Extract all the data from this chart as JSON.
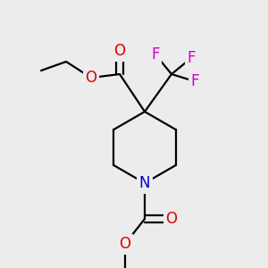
{
  "background_color": "#ececec",
  "atom_colors": {
    "C": "#000000",
    "N": "#0000cc",
    "O": "#dd0000",
    "F": "#cc00cc"
  },
  "bond_color": "#000000",
  "bond_width": 1.6,
  "figsize": [
    3.0,
    3.0
  ],
  "dpi": 100,
  "font_size": 12
}
